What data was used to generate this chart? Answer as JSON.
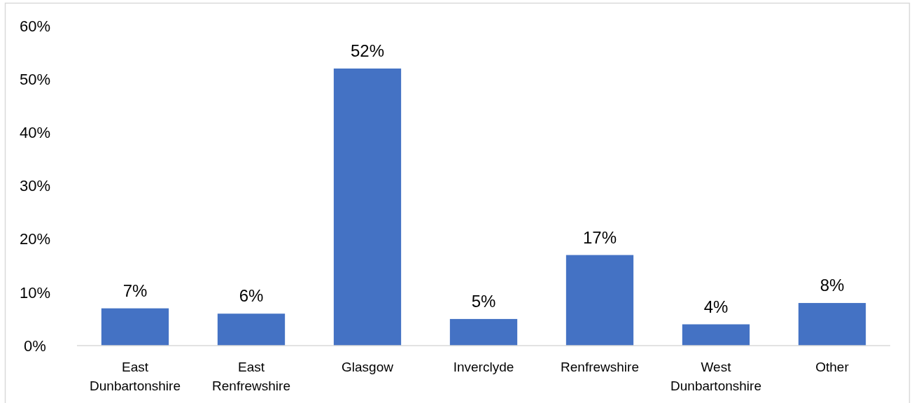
{
  "chart_data": {
    "type": "bar",
    "categories": [
      "East Dunbartonshire",
      "East Renfrewshire",
      "Glasgow",
      "Inverclyde",
      "Renfrewshire",
      "West Dunbartonshire",
      "Other"
    ],
    "values": [
      7,
      6,
      52,
      5,
      17,
      4,
      8
    ],
    "color": "#4472c4",
    "ylim": [
      0,
      60
    ],
    "yticks": [
      {
        "value": 0,
        "label": "0%"
      },
      {
        "value": 10,
        "label": "10%"
      },
      {
        "value": 20,
        "label": "20%"
      },
      {
        "value": 30,
        "label": "30%"
      },
      {
        "value": 40,
        "label": "40%"
      },
      {
        "value": 50,
        "label": "50%"
      },
      {
        "value": 60,
        "label": "60%"
      }
    ],
    "value_labels": [
      "7%",
      "6%",
      "52%",
      "5%",
      "17%",
      "4%",
      "8%"
    ],
    "grid": false
  }
}
